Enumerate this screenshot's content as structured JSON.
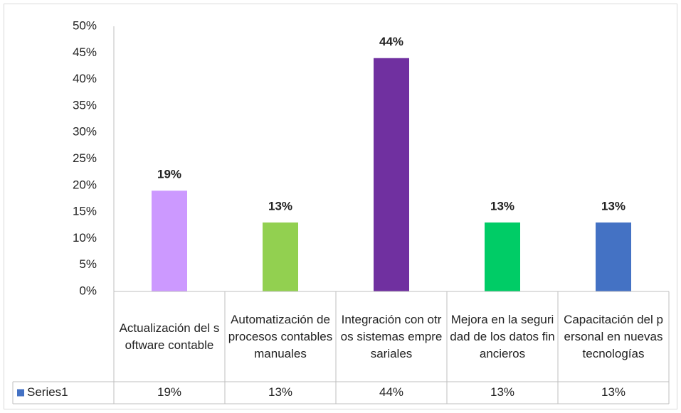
{
  "chart_data": {
    "type": "bar",
    "categories": [
      "Actualización del software contable",
      "Automatización de procesos contables manuales",
      "Integración con otros sistemas empresariales",
      "Mejora en la seguridad de los datos financieros",
      "Capacitación del personal en nuevas tecnologías"
    ],
    "series": [
      {
        "name": "Series1",
        "color": "#4472c4",
        "values": [
          19,
          13,
          44,
          13,
          13
        ],
        "value_labels": [
          "19%",
          "13%",
          "44%",
          "13%",
          "13%"
        ]
      }
    ],
    "point_colors": [
      "#cc99ff",
      "#92d050",
      "#7030a0",
      "#00cc66",
      "#4472c4"
    ],
    "ylim": [
      0,
      50
    ],
    "yticks": [
      {
        "value": 0,
        "label": "0%"
      },
      {
        "value": 5,
        "label": "5%"
      },
      {
        "value": 10,
        "label": "10%"
      },
      {
        "value": 15,
        "label": "15%"
      },
      {
        "value": 20,
        "label": "20%"
      },
      {
        "value": 25,
        "label": "25%"
      },
      {
        "value": 30,
        "label": "30%"
      },
      {
        "value": 35,
        "label": "35%"
      },
      {
        "value": 40,
        "label": "40%"
      },
      {
        "value": 45,
        "label": "45%"
      },
      {
        "value": 50,
        "label": "50%"
      }
    ],
    "grid": false,
    "data_table": true
  }
}
